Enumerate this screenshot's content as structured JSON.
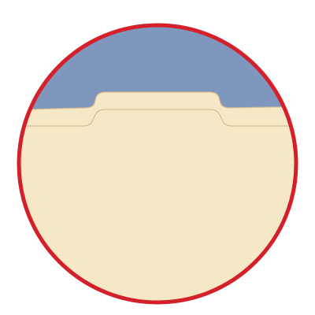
{
  "illustration": {
    "subject": "folder-tab-icon",
    "colors": {
      "background": "#ffffff",
      "border": "#d3202a",
      "sky": "#7f97bd",
      "folder": "#f6e8c6",
      "folder_edge": "#d6bf93",
      "tab_line": "#cdb58a"
    }
  }
}
